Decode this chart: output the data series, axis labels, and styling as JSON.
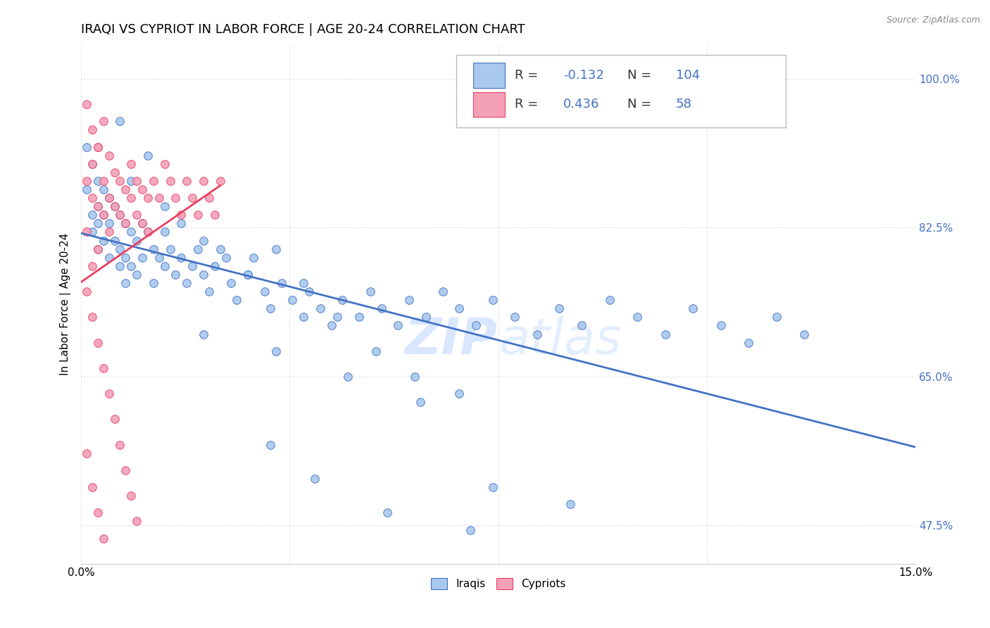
{
  "title": "IRAQI VS CYPRIOT IN LABOR FORCE | AGE 20-24 CORRELATION CHART",
  "source_text": "Source: ZipAtlas.com",
  "ylabel": "In Labor Force | Age 20-24",
  "xlim": [
    0.0,
    0.15
  ],
  "ylim": [
    0.43,
    1.04
  ],
  "xticks": [
    0.0,
    0.0375,
    0.075,
    0.1125,
    0.15
  ],
  "xticklabels": [
    "0.0%",
    "",
    "",
    "",
    "15.0%"
  ],
  "yticks": [
    0.475,
    0.65,
    0.825,
    1.0
  ],
  "yticklabels": [
    "47.5%",
    "65.0%",
    "82.5%",
    "100.0%"
  ],
  "blue_color": "#A8C8EE",
  "pink_color": "#F4A0B8",
  "blue_line_color": "#4472C4",
  "pink_line_color": "#E84060",
  "blue_edge_color": "#4472C4",
  "pink_edge_color": "#E84060",
  "watermark_color": "#C8DEFF",
  "title_fontsize": 13,
  "axis_label_fontsize": 11,
  "tick_fontsize": 11,
  "legend_fontsize": 13,
  "dot_size": 70,
  "iraqis_x": [
    0.001,
    0.001,
    0.002,
    0.002,
    0.002,
    0.003,
    0.003,
    0.003,
    0.003,
    0.004,
    0.004,
    0.004,
    0.005,
    0.005,
    0.005,
    0.006,
    0.006,
    0.007,
    0.007,
    0.007,
    0.008,
    0.008,
    0.008,
    0.009,
    0.009,
    0.01,
    0.01,
    0.011,
    0.011,
    0.012,
    0.013,
    0.013,
    0.014,
    0.015,
    0.015,
    0.016,
    0.017,
    0.018,
    0.019,
    0.02,
    0.021,
    0.022,
    0.023,
    0.024,
    0.025,
    0.027,
    0.028,
    0.03,
    0.031,
    0.033,
    0.034,
    0.036,
    0.038,
    0.04,
    0.041,
    0.043,
    0.045,
    0.047,
    0.05,
    0.052,
    0.054,
    0.057,
    0.059,
    0.062,
    0.065,
    0.068,
    0.071,
    0.074,
    0.078,
    0.082,
    0.086,
    0.09,
    0.095,
    0.1,
    0.105,
    0.11,
    0.115,
    0.12,
    0.125,
    0.13,
    0.007,
    0.009,
    0.012,
    0.015,
    0.018,
    0.022,
    0.026,
    0.03,
    0.035,
    0.04,
    0.046,
    0.053,
    0.06,
    0.068,
    0.022,
    0.035,
    0.048,
    0.061,
    0.074,
    0.088,
    0.034,
    0.042,
    0.055,
    0.07
  ],
  "iraqis_y": [
    0.92,
    0.87,
    0.9,
    0.84,
    0.82,
    0.88,
    0.85,
    0.83,
    0.8,
    0.87,
    0.84,
    0.81,
    0.86,
    0.83,
    0.79,
    0.85,
    0.81,
    0.84,
    0.8,
    0.78,
    0.83,
    0.79,
    0.76,
    0.82,
    0.78,
    0.81,
    0.77,
    0.83,
    0.79,
    0.82,
    0.8,
    0.76,
    0.79,
    0.82,
    0.78,
    0.8,
    0.77,
    0.79,
    0.76,
    0.78,
    0.8,
    0.77,
    0.75,
    0.78,
    0.8,
    0.76,
    0.74,
    0.77,
    0.79,
    0.75,
    0.73,
    0.76,
    0.74,
    0.72,
    0.75,
    0.73,
    0.71,
    0.74,
    0.72,
    0.75,
    0.73,
    0.71,
    0.74,
    0.72,
    0.75,
    0.73,
    0.71,
    0.74,
    0.72,
    0.7,
    0.73,
    0.71,
    0.74,
    0.72,
    0.7,
    0.73,
    0.71,
    0.69,
    0.72,
    0.7,
    0.95,
    0.88,
    0.91,
    0.85,
    0.83,
    0.81,
    0.79,
    0.77,
    0.8,
    0.76,
    0.72,
    0.68,
    0.65,
    0.63,
    0.7,
    0.68,
    0.65,
    0.62,
    0.52,
    0.5,
    0.57,
    0.53,
    0.49,
    0.47
  ],
  "cypriots_x": [
    0.001,
    0.001,
    0.002,
    0.002,
    0.002,
    0.003,
    0.003,
    0.003,
    0.004,
    0.004,
    0.005,
    0.005,
    0.005,
    0.006,
    0.006,
    0.007,
    0.007,
    0.008,
    0.008,
    0.009,
    0.009,
    0.01,
    0.01,
    0.011,
    0.011,
    0.012,
    0.012,
    0.013,
    0.014,
    0.015,
    0.016,
    0.017,
    0.018,
    0.019,
    0.02,
    0.021,
    0.022,
    0.023,
    0.024,
    0.025,
    0.001,
    0.002,
    0.003,
    0.004,
    0.005,
    0.006,
    0.007,
    0.008,
    0.009,
    0.01,
    0.001,
    0.002,
    0.003,
    0.004,
    0.001,
    0.002,
    0.003,
    0.004
  ],
  "cypriots_y": [
    0.88,
    0.82,
    0.9,
    0.86,
    0.78,
    0.92,
    0.85,
    0.8,
    0.88,
    0.84,
    0.91,
    0.86,
    0.82,
    0.89,
    0.85,
    0.88,
    0.84,
    0.87,
    0.83,
    0.9,
    0.86,
    0.88,
    0.84,
    0.87,
    0.83,
    0.86,
    0.82,
    0.88,
    0.86,
    0.9,
    0.88,
    0.86,
    0.84,
    0.88,
    0.86,
    0.84,
    0.88,
    0.86,
    0.84,
    0.88,
    0.75,
    0.72,
    0.69,
    0.66,
    0.63,
    0.6,
    0.57,
    0.54,
    0.51,
    0.48,
    0.56,
    0.52,
    0.49,
    0.46,
    0.97,
    0.94,
    0.92,
    0.95
  ]
}
